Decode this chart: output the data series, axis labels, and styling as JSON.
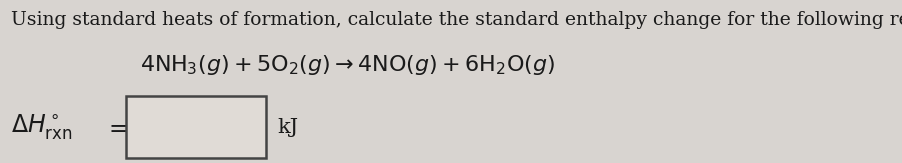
{
  "bg_color": "#d8d4d0",
  "line1": "Using standard heats of formation, calculate the standard enthalpy change for the following reaction.",
  "reaction": "$4\\mathrm{NH}_3(g) + 5\\mathrm{O}_2(g) \\rightarrow 4\\mathrm{NO}(g) + 6\\mathrm{H}_2\\mathrm{O}(g)$",
  "delta_label": "$\\Delta H^\\circ_{\\mathrm{rxn}}$",
  "equals": "$=$",
  "unit": "kJ",
  "font_size_line1": 13.5,
  "font_size_reaction": 16,
  "font_size_delta": 17,
  "font_size_unit": 15,
  "text_color": "#1a1a1a"
}
